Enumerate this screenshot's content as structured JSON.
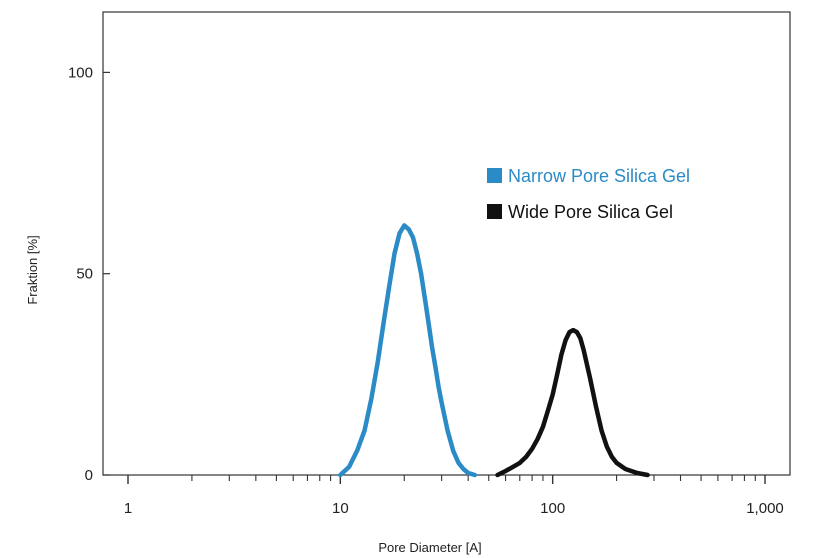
{
  "chart_data": {
    "type": "line",
    "xlabel": "Pore Diameter [A]",
    "ylabel": "Fraktion [%]",
    "xscale": "log",
    "xlim": [
      1,
      1000
    ],
    "ylim": [
      0,
      115
    ],
    "x_ticks": [
      {
        "value": 1,
        "label": "1"
      },
      {
        "value": 10,
        "label": "10"
      },
      {
        "value": 100,
        "label": "100"
      },
      {
        "value": 1000,
        "label": "1,000"
      }
    ],
    "y_ticks": [
      {
        "value": 0,
        "label": "0"
      },
      {
        "value": 50,
        "label": "50"
      },
      {
        "value": 100,
        "label": "100"
      }
    ],
    "grid": false,
    "legend_position": "right",
    "series": [
      {
        "name": "Narrow Pore Silica Gel",
        "color": "#2b8bc6",
        "x": [
          10,
          11,
          12,
          13,
          14,
          15,
          16,
          17,
          18,
          19,
          20,
          21,
          22,
          23,
          24,
          25,
          26,
          27,
          28,
          29,
          30,
          32,
          34,
          36,
          38,
          40,
          43
        ],
        "y": [
          0,
          2,
          6,
          11,
          19,
          28,
          38,
          47,
          55,
          60,
          62,
          61,
          59,
          55,
          50,
          44,
          38,
          32,
          27,
          22,
          18,
          11,
          6,
          3,
          1.5,
          0.5,
          0
        ]
      },
      {
        "name": "Wide Pore Silica Gel",
        "color": "#111111",
        "x": [
          55,
          60,
          65,
          70,
          75,
          80,
          85,
          90,
          95,
          100,
          105,
          110,
          115,
          120,
          125,
          130,
          135,
          140,
          150,
          160,
          170,
          180,
          190,
          200,
          220,
          250,
          280
        ],
        "y": [
          0,
          1,
          2,
          3,
          4.5,
          6.5,
          9,
          12,
          16,
          20,
          25,
          30,
          33.5,
          35.5,
          36,
          35.5,
          34,
          31,
          24,
          17,
          11,
          7,
          4.5,
          3,
          1.5,
          0.5,
          0
        ]
      }
    ]
  }
}
